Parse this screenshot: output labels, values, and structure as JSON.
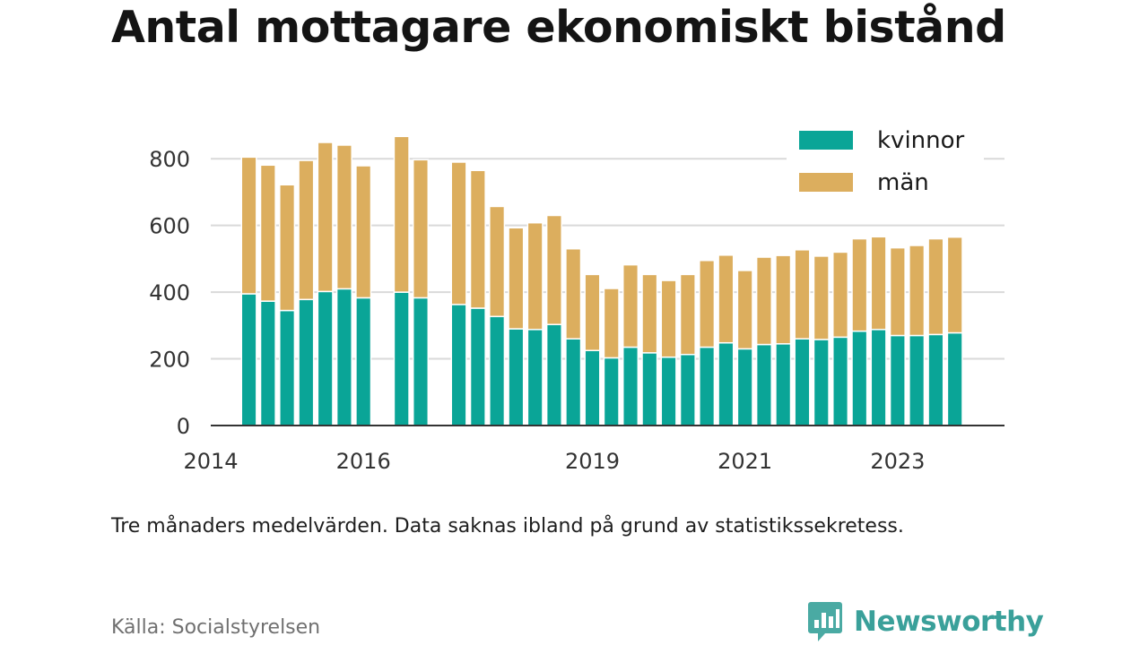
{
  "title": "Antal mottagare ekonomiskt bistånd",
  "note": "Tre månaders medelvärden. Data saknas ibland på grund av statistikssekretess.",
  "source": "Källa: Socialstyrelsen",
  "brand": {
    "name": "Newsworthy",
    "icon": "newsworthy-logo-icon"
  },
  "colors": {
    "women": "#0aa597",
    "men": "#dcae5e",
    "grid": "#d9d9d9",
    "axis": "#333333"
  },
  "chart_data": {
    "type": "bar",
    "stacked": true,
    "title": "Antal mottagare ekonomiskt bistånd",
    "xlabel": "",
    "ylabel": "",
    "ylim": [
      0,
      900
    ],
    "yticks": [
      0,
      200,
      400,
      600,
      800
    ],
    "xlim": [
      2014.0,
      2024.4
    ],
    "xticks": [
      2014,
      2016,
      2019,
      2021,
      2023
    ],
    "grid": true,
    "legend_position": "top-right",
    "x": [
      2014.5,
      2014.75,
      2015.0,
      2015.25,
      2015.5,
      2015.75,
      2016.0,
      2016.25,
      2016.5,
      2016.75,
      2017.0,
      2017.25,
      2017.5,
      2017.75,
      2018.0,
      2018.25,
      2018.5,
      2018.75,
      2019.0,
      2019.25,
      2019.5,
      2019.75,
      2020.0,
      2020.25,
      2020.5,
      2020.75,
      2021.0,
      2021.25,
      2021.5,
      2021.75,
      2022.0,
      2022.25,
      2022.5,
      2022.75,
      2023.0,
      2023.25,
      2023.5,
      2023.75,
      2024.0,
      2024.25
    ],
    "series": [
      {
        "name": "kvinnor",
        "values": [
          395,
          373,
          345,
          378,
          402,
          410,
          383,
          null,
          400,
          383,
          null,
          363,
          352,
          327,
          290,
          288,
          303,
          260,
          225,
          203,
          235,
          218,
          205,
          213,
          235,
          248,
          230,
          243,
          245,
          260,
          258,
          265,
          283,
          288,
          270,
          270,
          273,
          278,
          null,
          null
        ]
      },
      {
        "name": "män",
        "values": [
          410,
          408,
          377,
          417,
          447,
          431,
          396,
          null,
          467,
          414,
          null,
          427,
          413,
          330,
          303,
          320,
          327,
          270,
          228,
          208,
          247,
          235,
          230,
          240,
          260,
          263,
          235,
          262,
          265,
          267,
          250,
          255,
          277,
          278,
          263,
          270,
          287,
          287,
          null,
          null
        ]
      }
    ]
  }
}
